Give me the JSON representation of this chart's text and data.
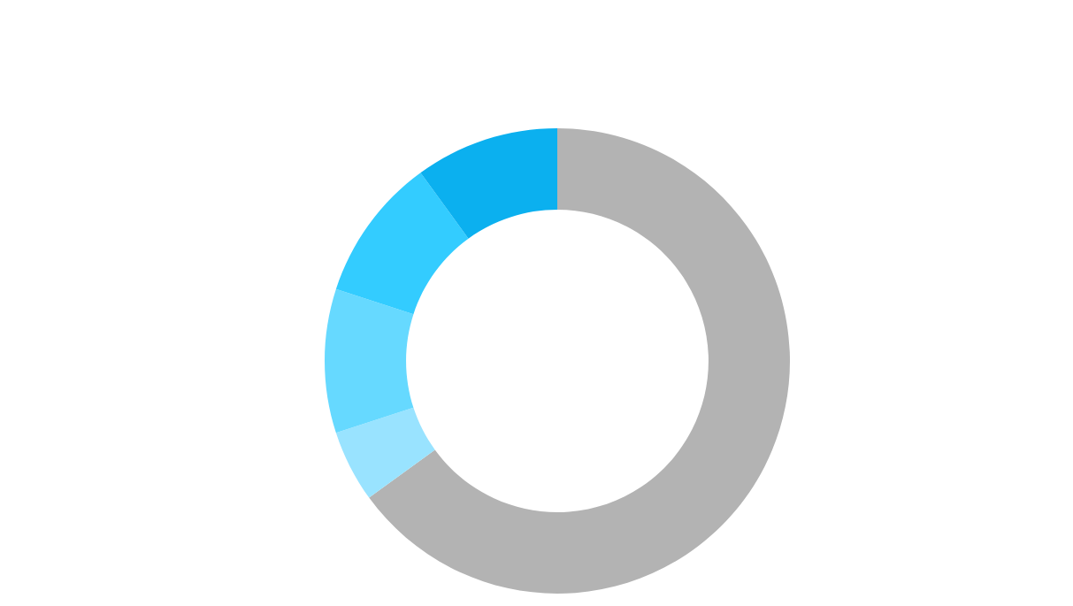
{
  "chart_data": {
    "type": "donut",
    "categories": [
      null,
      null,
      null,
      null,
      null
    ],
    "values": [
      65,
      5,
      10,
      10,
      10
    ],
    "colors": [
      "#b3b3b3",
      "#99e3ff",
      "#66d9ff",
      "#33ccff",
      "#0bb0ef"
    ]
  }
}
